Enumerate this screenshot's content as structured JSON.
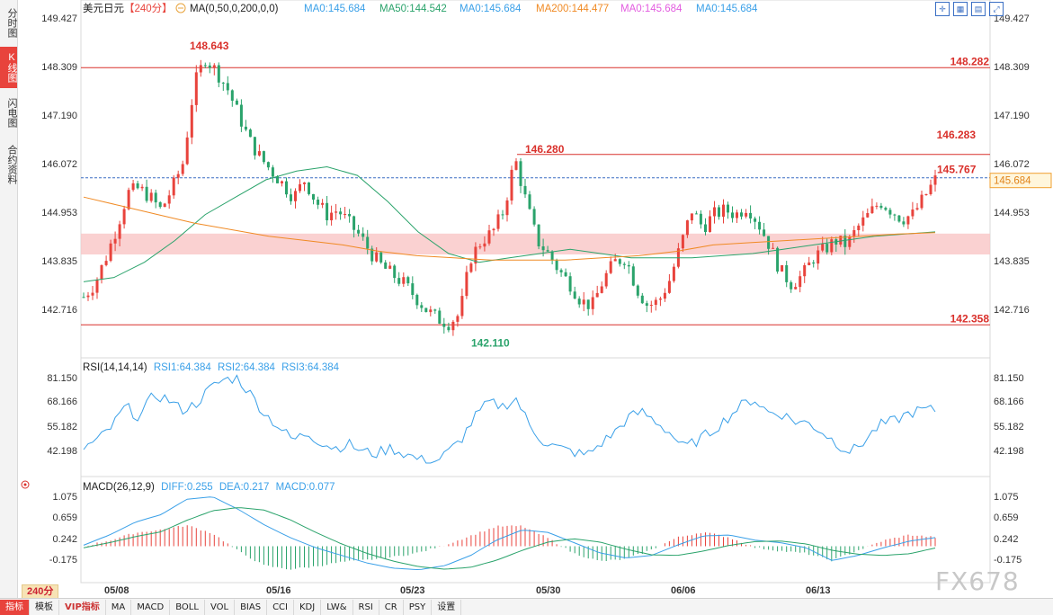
{
  "left_tabs": [
    {
      "label": "分时图",
      "active": false
    },
    {
      "label": "K线图",
      "active": true
    },
    {
      "label": "闪电图",
      "active": false
    },
    {
      "label": "合约资料",
      "active": false
    }
  ],
  "header": {
    "symbol": "美元日元",
    "period": "【240分】",
    "ma_title": "MA(0,50,0,200,0,0)",
    "ma_values": [
      {
        "text": "MA0:145.684",
        "color": "#3aa0e8"
      },
      {
        "text": "MA50:144.542",
        "color": "#2aa36b"
      },
      {
        "text": "MA0:145.684",
        "color": "#3aa0e8"
      },
      {
        "text": "MA200:144.477",
        "color": "#f08a24"
      },
      {
        "text": "MA0:145.684",
        "color": "#e35de0"
      },
      {
        "text": "MA0:145.684",
        "color": "#3aa0e8"
      }
    ]
  },
  "price_axis": {
    "ticks": [
      "149.427",
      "148.309",
      "147.190",
      "146.072",
      "144.953",
      "143.835",
      "142.716"
    ],
    "current": "145.684"
  },
  "rsi": {
    "title": "RSI(14,14,14)",
    "values": [
      {
        "text": "RSI1:64.384",
        "color": "#3aa0e8"
      },
      {
        "text": "RSI2:64.384",
        "color": "#3aa0e8"
      },
      {
        "text": "RSI3:64.384",
        "color": "#3aa0e8"
      }
    ],
    "ticks": [
      "81.150",
      "68.166",
      "55.182",
      "42.198"
    ]
  },
  "macd": {
    "title": "MACD(26,12,9)",
    "values": [
      {
        "text": "DIFF:0.255",
        "color": "#3aa0e8"
      },
      {
        "text": "DEA:0.217",
        "color": "#3aa0e8"
      },
      {
        "text": "MACD:0.077",
        "color": "#3aa0e8"
      }
    ],
    "ticks": [
      "1.075",
      "0.659",
      "0.242",
      "-0.175"
    ]
  },
  "date_labels": [
    "05/08",
    "05/16",
    "05/23",
    "05/30",
    "06/06",
    "06/13"
  ],
  "annotations": {
    "high_mark": "148.643",
    "low_mark": "142.110",
    "mid_high": "146.280",
    "last_high": "145.767",
    "line_top": "148.282",
    "line_mid": "146.283",
    "line_bottom": "142.358"
  },
  "period_badge": "240分",
  "watermark": "FX678",
  "toolbar": [
    "指标",
    "模板",
    "VIP指标",
    "MA",
    "MACD",
    "BOLL",
    "VOL",
    "BIAS",
    "CCI",
    "KDJ",
    "LW&",
    "RSI",
    "CR",
    "PSY",
    "设置"
  ],
  "chart_data": {
    "type": "candlestick",
    "title": "美元日元【240分】",
    "series_summary": {
      "high": 148.643,
      "low": 142.11,
      "last_close": 145.684
    },
    "horizontal_lines": [
      148.282,
      146.283,
      142.358
    ],
    "shaded_zone": [
      143.98,
      144.46
    ],
    "ylim": [
      142.2,
      149.6
    ],
    "x_dates": [
      "05/08",
      "05/16",
      "05/23",
      "05/30",
      "06/06",
      "06/13"
    ],
    "close_path": [
      143.0,
      143.3,
      143.9,
      144.6,
      145.4,
      145.5,
      145.3,
      145.0,
      145.5,
      146.1,
      147.9,
      148.5,
      148.2,
      147.8,
      147.2,
      146.6,
      146.2,
      145.9,
      145.6,
      145.3,
      145.7,
      145.2,
      144.9,
      145.0,
      144.7,
      144.4,
      144.0,
      143.7,
      143.5,
      143.3,
      143.0,
      142.7,
      142.5,
      142.4,
      142.6,
      143.9,
      144.3,
      144.5,
      145.0,
      146.2,
      145.2,
      144.3,
      144.0,
      143.6,
      143.3,
      142.9,
      142.8,
      143.4,
      143.8,
      143.9,
      143.2,
      142.8,
      142.9,
      143.4,
      144.2,
      145.0,
      144.6,
      144.9,
      145.0,
      144.9,
      145.1,
      144.7,
      144.2,
      143.6,
      143.3,
      143.5,
      143.9,
      144.1,
      144.3,
      144.2,
      144.6,
      144.9,
      145.2,
      145.0,
      144.8,
      144.9,
      145.3,
      145.7
    ],
    "ma50_path": [
      143.35,
      143.45,
      143.8,
      144.3,
      144.9,
      145.3,
      145.7,
      145.9,
      146.0,
      145.8,
      145.2,
      144.5,
      144.0,
      143.8,
      143.9,
      144.0,
      144.1,
      144.0,
      143.9,
      143.9,
      143.9,
      143.95,
      144.0,
      144.1,
      144.2,
      144.3,
      144.4,
      144.45,
      144.5
    ],
    "ma200_path": [
      145.3,
      145.1,
      144.9,
      144.7,
      144.55,
      144.4,
      144.3,
      144.2,
      144.05,
      143.95,
      143.9,
      143.85,
      143.85,
      143.85,
      143.9,
      143.95,
      144.05,
      144.2,
      144.25,
      144.3,
      144.35,
      144.4,
      144.45,
      144.48
    ],
    "rsi": {
      "ylim": [
        35,
        85
      ],
      "ticks": [
        81.15,
        68.166,
        55.182,
        42.198
      ],
      "last": 64.384
    },
    "macd": {
      "ylim": [
        -0.45,
        1.2
      ],
      "ticks": [
        1.075,
        0.659,
        0.242,
        -0.175
      ],
      "diff": 0.255,
      "dea": 0.217,
      "macd": 0.077
    }
  }
}
